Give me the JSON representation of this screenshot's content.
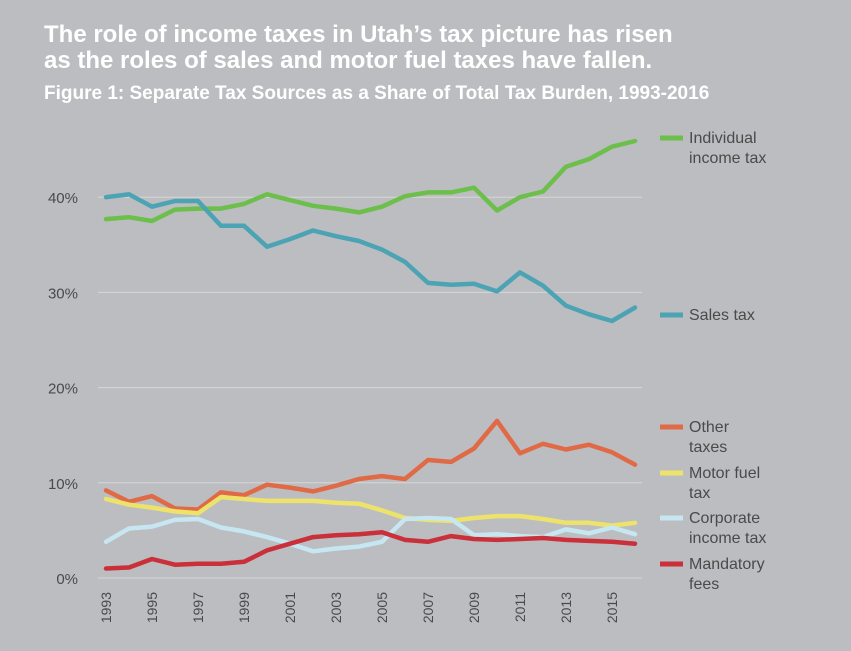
{
  "headline_lines": [
    "The role of income taxes in Utah’s tax picture has risen",
    "as the roles of sales and motor fuel taxes have fallen."
  ],
  "figure_title": "Figure 1: Separate Tax Sources as a Share of Total Tax Burden, 1993-2016",
  "colors": {
    "background": "#bcbdc0",
    "grid": "#d6d7d9",
    "text": "#4a4a4a"
  },
  "chart_data": {
    "type": "line",
    "x": [
      1993,
      1994,
      1995,
      1996,
      1997,
      1998,
      1999,
      2000,
      2001,
      2002,
      2003,
      2004,
      2005,
      2006,
      2007,
      2008,
      2009,
      2010,
      2011,
      2012,
      2013,
      2014,
      2015,
      2016
    ],
    "x_tick_labels": [
      "1993",
      "1995",
      "1997",
      "1999",
      "2001",
      "2003",
      "2005",
      "2007",
      "2009",
      "2011",
      "2013",
      "2015"
    ],
    "y_tick_labels": [
      "0%",
      "10%",
      "20%",
      "30%",
      "40%"
    ],
    "y_ticks": [
      0,
      10,
      20,
      30,
      40
    ],
    "ylim": [
      0,
      48
    ],
    "grid": true,
    "legend_placement": "right",
    "series": [
      {
        "name": "Individual income tax",
        "label_lines": [
          "Individual",
          "income tax"
        ],
        "color": "#6cbf4a",
        "values": [
          37.7,
          37.9,
          37.5,
          38.7,
          38.8,
          38.8,
          39.3,
          40.3,
          39.7,
          39.1,
          38.8,
          38.4,
          39.0,
          40.1,
          40.5,
          40.5,
          41.0,
          38.6,
          40.0,
          40.6,
          43.2,
          44.0,
          45.3,
          45.9
        ]
      },
      {
        "name": "Sales tax",
        "label_lines": [
          "Sales tax"
        ],
        "color": "#4ba3b4",
        "values": [
          40.0,
          40.3,
          39.0,
          39.6,
          39.6,
          37.0,
          37.0,
          34.8,
          35.6,
          36.5,
          35.9,
          35.4,
          34.5,
          33.2,
          31.0,
          30.8,
          30.9,
          30.1,
          32.1,
          30.7,
          28.6,
          27.7,
          27.0,
          28.4
        ]
      },
      {
        "name": "Other taxes",
        "label_lines": [
          "Other",
          "taxes"
        ],
        "color": "#e06a45",
        "values": [
          9.2,
          8.0,
          8.6,
          7.3,
          7.2,
          9.0,
          8.7,
          9.8,
          9.5,
          9.1,
          9.7,
          10.4,
          10.7,
          10.4,
          12.4,
          12.2,
          13.6,
          16.5,
          13.1,
          14.1,
          13.5,
          14.0,
          13.2,
          11.9
        ]
      },
      {
        "name": "Motor fuel tax",
        "label_lines": [
          "Motor fuel",
          "tax"
        ],
        "color": "#ede36b",
        "values": [
          8.3,
          7.7,
          7.4,
          7.0,
          6.8,
          8.5,
          8.3,
          8.1,
          8.1,
          8.1,
          7.9,
          7.8,
          7.1,
          6.3,
          6.1,
          6.0,
          6.3,
          6.5,
          6.5,
          6.2,
          5.8,
          5.8,
          5.5,
          5.8
        ]
      },
      {
        "name": "Corporate income tax",
        "label_lines": [
          "Corporate",
          "income tax"
        ],
        "color": "#c6e6f2",
        "values": [
          3.8,
          5.2,
          5.4,
          6.1,
          6.2,
          5.3,
          4.9,
          4.3,
          3.6,
          2.8,
          3.1,
          3.3,
          3.8,
          6.2,
          6.3,
          6.2,
          4.5,
          4.6,
          4.4,
          4.3,
          5.1,
          4.7,
          5.3,
          4.6
        ]
      },
      {
        "name": "Mandatory fees",
        "label_lines": [
          "Mandatory",
          "fees"
        ],
        "color": "#c9303a",
        "values": [
          1.0,
          1.1,
          2.0,
          1.4,
          1.5,
          1.5,
          1.7,
          2.9,
          3.6,
          4.3,
          4.5,
          4.6,
          4.8,
          4.0,
          3.8,
          4.4,
          4.1,
          4.0,
          4.1,
          4.2,
          4.0,
          3.9,
          3.8,
          3.6
        ]
      }
    ]
  }
}
